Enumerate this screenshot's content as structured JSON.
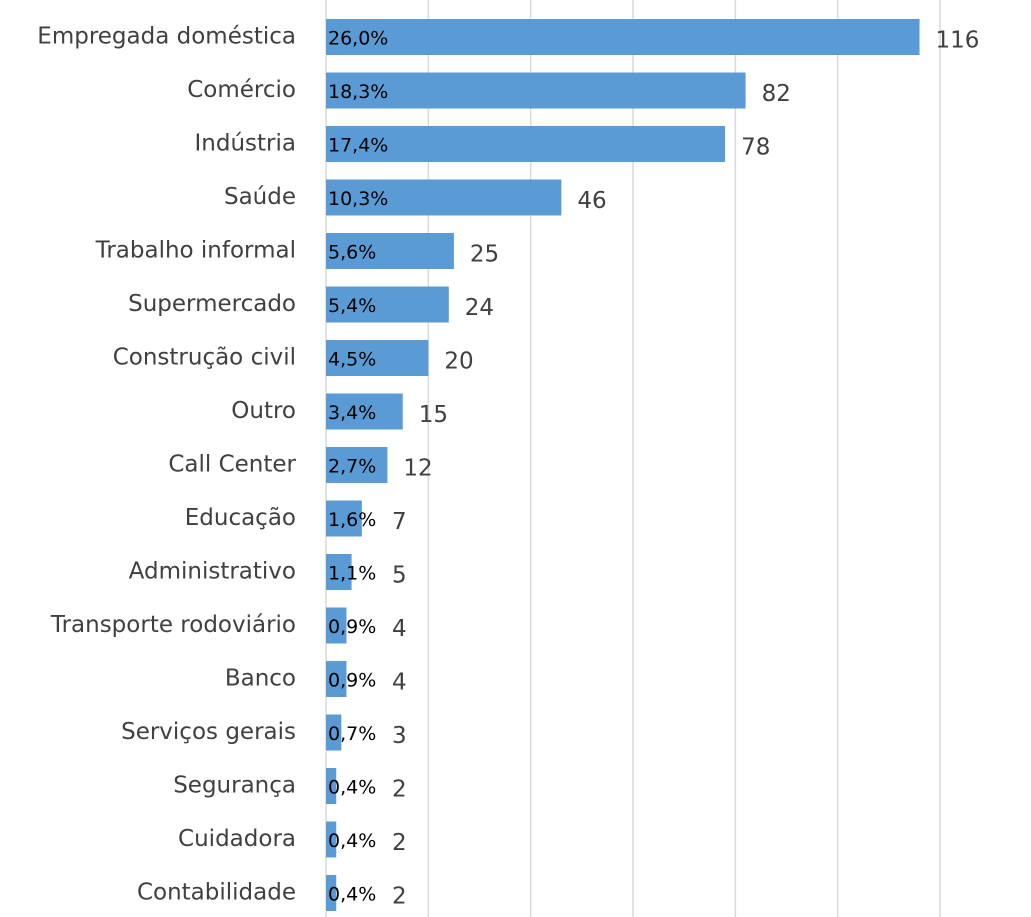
{
  "chart_data": {
    "type": "bar",
    "orientation": "horizontal",
    "categories": [
      "Empregada doméstica",
      "Comércio",
      "Indústria",
      "Saúde",
      "Trabalho informal",
      "Supermercado",
      "Construção civil",
      "Outro",
      "Call Center",
      "Educação",
      "Administrativo",
      "Transporte rodoviário",
      "Banco",
      "Serviços gerais",
      "Segurança",
      "Cuidadora",
      "Contabilidade"
    ],
    "values": [
      116,
      82,
      78,
      46,
      25,
      24,
      20,
      15,
      12,
      7,
      5,
      4,
      4,
      3,
      2,
      2,
      2
    ],
    "share_labels": [
      "26,0%",
      "18,3%",
      "17,4%",
      "10,3%",
      "5,6%",
      "5,4%",
      "4,5%",
      "3,4%",
      "2,7%",
      "1,6%",
      "1,1%",
      "0,9%",
      "0,9%",
      "0,7%",
      "0,4%",
      "0,4%",
      "0,4%"
    ],
    "color": "#5b9bd5",
    "xlim": [
      0,
      120
    ],
    "xticks": [
      0,
      20,
      40,
      60,
      80,
      100,
      120
    ],
    "grid": true
  }
}
